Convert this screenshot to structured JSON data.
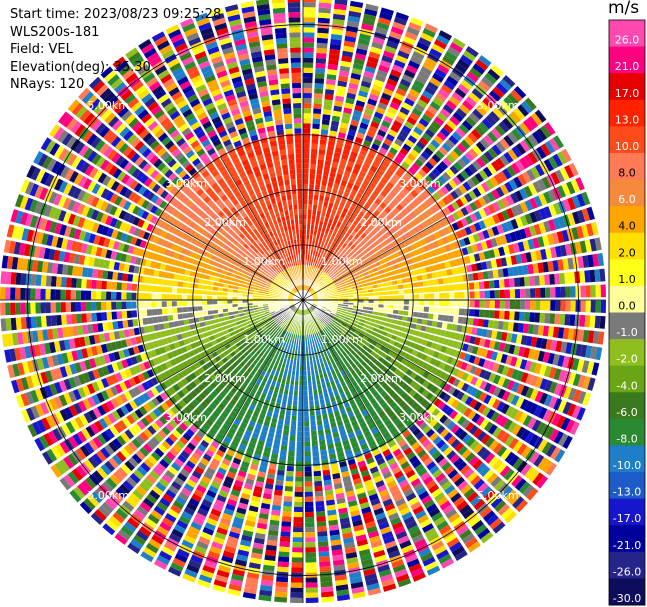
{
  "info": {
    "start_time": "Start time: 2023/08/23 09:25:28",
    "instrument": "WLS200s-181",
    "field": "Field: VEL",
    "elevation": "Elevation(deg): 35.30",
    "nrays": "NRays: 120"
  },
  "colorbar": {
    "unit": "m/s",
    "ticks": [
      "26.0",
      "21.0",
      "17.0",
      "13.0",
      "10.0",
      "8.0",
      "6.0",
      "4.0",
      "2.0",
      "1.0",
      "0.0",
      "-1.0",
      "-2.0",
      "-4.0",
      "-6.0",
      "-8.0",
      "-10.0",
      "-13.0",
      "-17.0",
      "-21.0",
      "-26.0",
      "-30.0"
    ],
    "colors": [
      "#ff49b0",
      "#ff0080",
      "#e60000",
      "#ff2200",
      "#ff4a1a",
      "#ff7a55",
      "#f58a3c",
      "#ffa500",
      "#ffe000",
      "#ffff1a",
      "#ffff99",
      "#7a7a7a",
      "#8fbf1f",
      "#6aa516",
      "#3a7a1e",
      "#2a8a32",
      "#1f7ec8",
      "#1c5bc8",
      "#1616cc",
      "#00009c",
      "#24248a",
      "#0d0d5c"
    ]
  },
  "chart_data": {
    "type": "ppi",
    "field": "VEL",
    "unit": "m/s",
    "elevation_deg": 35.3,
    "n_rays": 120,
    "range_rings_km": [
      1.0,
      2.0,
      3.0,
      5.0
    ],
    "ring_labels": [
      "1.00km",
      "2.00km",
      "3.00km",
      "5.00km"
    ],
    "max_range_km": 5.5,
    "valid_range_km": 3.0,
    "velocity_bands": [
      {
        "azimuth_region": "north",
        "range_km": [
          2.0,
          3.0
        ],
        "velocity_ms": 8.0
      },
      {
        "azimuth_region": "north-east/north-west",
        "range_km": [
          1.5,
          2.5
        ],
        "velocity_ms": 4.0
      },
      {
        "azimuth_region": "north",
        "range_km": [
          0.5,
          1.5
        ],
        "velocity_ms": 2.0
      },
      {
        "azimuth_region": "east-west",
        "range_km": [
          0.0,
          3.0
        ],
        "velocity_ms": 0.0
      },
      {
        "azimuth_region": "south-west/south-east",
        "range_km": [
          1.0,
          2.5
        ],
        "velocity_ms": -2.0
      },
      {
        "azimuth_region": "south",
        "range_km": [
          1.0,
          2.0
        ],
        "velocity_ms": -6.0
      },
      {
        "azimuth_region": "south",
        "range_km": [
          2.0,
          3.0
        ],
        "velocity_ms": -8.0
      }
    ],
    "noise_region_km": [
      3.0,
      5.5
    ],
    "grid": true
  }
}
